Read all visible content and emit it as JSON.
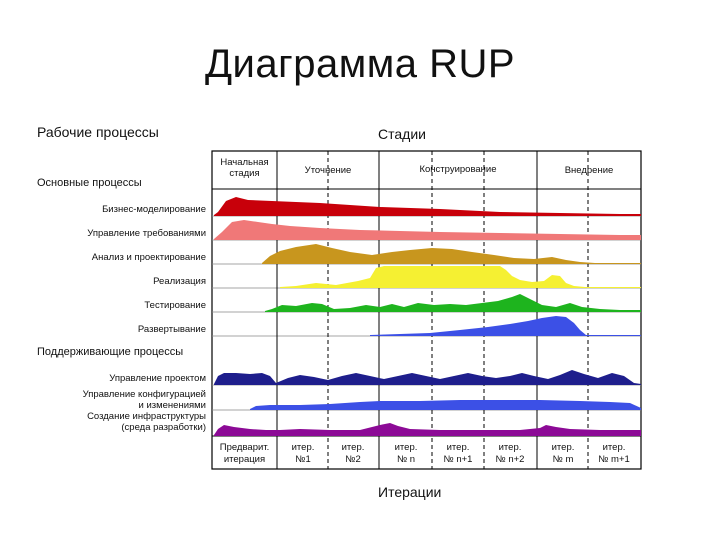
{
  "title": "Диаграмма RUP",
  "header_left": "Рабочие процессы",
  "header_right": "Стадии",
  "core_section": "Основные процессы",
  "support_section": "Поддерживающие процессы",
  "footer": "Итерации",
  "phases": [
    {
      "lines": [
        "Начальная",
        "стадия"
      ]
    },
    {
      "lines": [
        "Уточнение"
      ]
    },
    {
      "lines": [
        "Конструирование"
      ]
    },
    {
      "lines": [
        "Внедрение"
      ]
    }
  ],
  "disciplines": [
    {
      "lines": [
        "Бизнес-моделирование"
      ],
      "color": "#c8000a"
    },
    {
      "lines": [
        "Управление требованиями"
      ],
      "color": "#f07878"
    },
    {
      "lines": [
        "Анализ и проектирование"
      ],
      "color": "#c8961e"
    },
    {
      "lines": [
        "Реализация"
      ],
      "color": "#f5f032"
    },
    {
      "lines": [
        "Тестирование"
      ],
      "color": "#1eb41e"
    },
    {
      "lines": [
        "Развертывание"
      ],
      "color": "#3c50e6"
    },
    {
      "lines": [
        "Управление проектом"
      ],
      "color": "#1e1e8c"
    },
    {
      "lines": [
        "Управление конфигурацией",
        "и изменениями"
      ],
      "color": "#3c50e6"
    },
    {
      "lines": [
        "Создание инфраструктуры",
        "(среда разработки)"
      ],
      "color": "#8c0a96"
    }
  ],
  "iterations": [
    {
      "lines": [
        "Предварит.",
        "итерация"
      ]
    },
    {
      "lines": [
        "итер.",
        "№1"
      ]
    },
    {
      "lines": [
        "итер.",
        "№2"
      ]
    },
    {
      "lines": [
        "итер.",
        "№ n"
      ]
    },
    {
      "lines": [
        "итер.",
        "№ n+1"
      ]
    },
    {
      "lines": [
        "итер.",
        "№ n+2"
      ]
    },
    {
      "lines": [
        "итер.",
        "№ m"
      ]
    },
    {
      "lines": [
        "итер.",
        "№ m+1"
      ]
    }
  ]
}
